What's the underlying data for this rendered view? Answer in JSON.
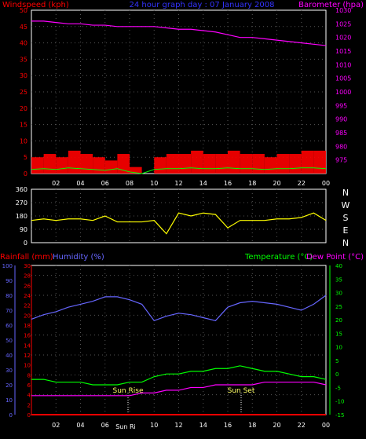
{
  "header": {
    "left": "Windspeed (kph)",
    "center": "24 hour graph day : 07 January 2008",
    "right": "Barometer (hpa)"
  },
  "bottom_header": {
    "rain": "Rainfall (mm)",
    "hum": "Humidity (%)",
    "temp": "Temperature (°C)",
    "dew": "Dew Point (°C)"
  },
  "time_ticks": [
    "02",
    "04",
    "06",
    "08",
    "10",
    "12",
    "14",
    "16",
    "18",
    "20",
    "22",
    "00"
  ],
  "direction_labels": [
    "N",
    "W",
    "S",
    "E",
    "N"
  ],
  "sun_labels": {
    "rise": "Sun Rise",
    "set": "Sun Set",
    "rise_tick": "Sun Ri"
  },
  "colors": {
    "wind": "#ff0000",
    "gust": "#ff0000",
    "avgwind": "#00ff00",
    "baro": "#ff00ff",
    "dir": "#ffff00",
    "rain": "#ff0000",
    "hum": "#6666ff",
    "temp": "#00ff00",
    "dew": "#ff00ff"
  },
  "chart_data": [
    {
      "type": "line",
      "panel": "wind",
      "title": "",
      "y_left": {
        "label": "Windspeed (kph)",
        "range": [
          0,
          50
        ],
        "ticks": [
          0,
          5,
          10,
          15,
          20,
          25,
          30,
          35,
          40,
          45,
          50
        ]
      },
      "y_right": {
        "label": "Barometer (hpa)",
        "range": [
          970,
          1030
        ],
        "ticks": [
          975,
          980,
          985,
          990,
          995,
          1000,
          1005,
          1010,
          1015,
          1020,
          1025,
          1030
        ]
      },
      "x_hours": [
        0,
        1,
        2,
        3,
        4,
        5,
        6,
        7,
        8,
        9,
        10,
        11,
        12,
        13,
        14,
        15,
        16,
        17,
        18,
        19,
        20,
        21,
        22,
        23,
        24
      ],
      "series": [
        {
          "name": "Windspeed (kph)",
          "axis": "left",
          "values": [
            5,
            6,
            5,
            7,
            6,
            5,
            4,
            6,
            2,
            0,
            5,
            6,
            6,
            7,
            6,
            6,
            7,
            6,
            6,
            5,
            6,
            6,
            7,
            7,
            6
          ]
        },
        {
          "name": "Barometer (hpa)",
          "axis": "right",
          "values": [
            1026,
            1026,
            1025.5,
            1025,
            1025,
            1024.5,
            1024.5,
            1024,
            1024,
            1024,
            1024,
            1023.5,
            1023,
            1023,
            1022.5,
            1022,
            1021,
            1020,
            1020,
            1019.5,
            1019,
            1018.5,
            1018,
            1017.5,
            1017
          ]
        }
      ],
      "grid": true
    },
    {
      "type": "line",
      "panel": "direction",
      "y_left": {
        "range": [
          0,
          360
        ],
        "ticks": [
          0,
          90,
          180,
          270,
          360
        ]
      },
      "x_hours": [
        0,
        1,
        2,
        3,
        4,
        5,
        6,
        7,
        8,
        9,
        10,
        11,
        12,
        13,
        14,
        15,
        16,
        17,
        18,
        19,
        20,
        21,
        22,
        23,
        24
      ],
      "series": [
        {
          "name": "Wind Direction",
          "values": [
            150,
            160,
            150,
            160,
            160,
            150,
            180,
            140,
            140,
            140,
            150,
            60,
            200,
            180,
            200,
            190,
            100,
            150,
            150,
            150,
            160,
            160,
            170,
            200,
            150
          ]
        }
      ],
      "grid": true
    },
    {
      "type": "line",
      "panel": "weather",
      "y_rain": {
        "label": "Rainfall (mm)",
        "range": [
          0,
          30
        ],
        "ticks": [
          0,
          2,
          4,
          6,
          8,
          10,
          12,
          14,
          16,
          18,
          20,
          22,
          24,
          26,
          28,
          30
        ]
      },
      "y_hum": {
        "label": "Humidity (%)",
        "range": [
          0,
          100
        ],
        "ticks": [
          0,
          10,
          20,
          30,
          40,
          50,
          60,
          70,
          80,
          90,
          100
        ]
      },
      "y_temp": {
        "label": "Temperature (°C)",
        "range": [
          -15,
          40
        ],
        "ticks": [
          -15,
          -10,
          -5,
          0,
          5,
          10,
          15,
          20,
          25,
          30,
          35,
          40
        ]
      },
      "x_hours": [
        0,
        1,
        2,
        3,
        4,
        5,
        6,
        7,
        8,
        9,
        10,
        11,
        12,
        13,
        14,
        15,
        16,
        17,
        18,
        19,
        20,
        21,
        22,
        23,
        24
      ],
      "series": [
        {
          "name": "Rainfall (mm)",
          "axis": "rain",
          "values": [
            0,
            0,
            0,
            0,
            0,
            0,
            0,
            0,
            0,
            0,
            0,
            0,
            0,
            0,
            0,
            0,
            0,
            0,
            0,
            0,
            0,
            0,
            0,
            0,
            0
          ]
        },
        {
          "name": "Humidity (%)",
          "axis": "hum",
          "values": [
            64,
            67,
            69,
            72,
            74,
            76,
            79,
            79,
            77,
            74,
            63,
            66,
            68,
            67,
            65,
            63,
            72,
            75,
            76,
            75,
            74,
            72,
            70,
            74,
            80
          ]
        },
        {
          "name": "Temperature (°C)",
          "axis": "temp",
          "values": [
            -2,
            -2,
            -3,
            -3,
            -3,
            -4,
            -4,
            -4,
            -3,
            -3,
            -1,
            0,
            0,
            1,
            1,
            2,
            2,
            3,
            2,
            1,
            1,
            0,
            -1,
            -1,
            -2
          ]
        },
        {
          "name": "Dew Point (°C)",
          "axis": "temp",
          "values": [
            -8,
            -8,
            -8,
            -8,
            -8,
            -8,
            -8,
            -8,
            -8,
            -7,
            -7,
            -6,
            -6,
            -5,
            -5,
            -4,
            -4,
            -4,
            -4,
            -3,
            -3,
            -3,
            -3,
            -3,
            -4
          ]
        }
      ],
      "grid": true
    }
  ]
}
